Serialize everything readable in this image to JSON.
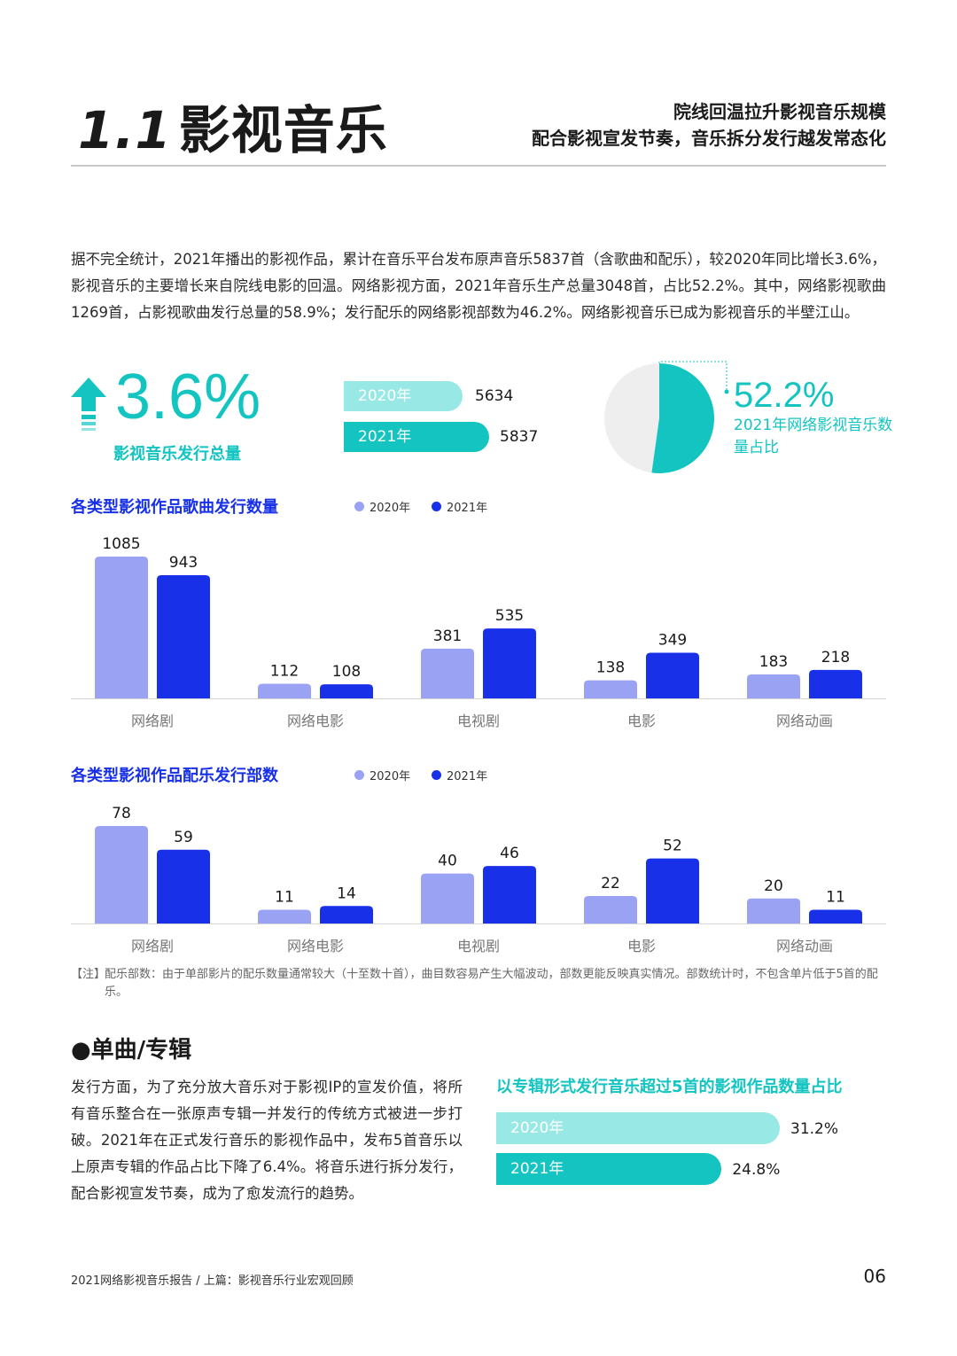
{
  "header": {
    "title_num": "1.1",
    "title_text": "影视音乐",
    "subtitle_line1": "院线回温拉升影视音乐规模",
    "subtitle_line2": "配合影视宣发节奏，音乐拆分发行越发常态化"
  },
  "intro": "据不完全统计，2021年播出的影视作品，累计在音乐平台发布原声音乐5837首（含歌曲和配乐），较2020年同比增长3.6%，影视音乐的主要增长来自院线电影的回温。网络影视方面，2021年音乐生产总量3048首，占比52.2%。其中，网络影视歌曲1269首，占影视歌曲发行总量的58.9%；发行配乐的网络影视部数为46.2%。网络影视音乐已成为影视音乐的半壁江山。",
  "kpi": {
    "growth_value": "3.6%",
    "growth_label": "影视音乐发行总量",
    "totals": [
      {
        "year": "2020年",
        "value": 5634,
        "label": "5634"
      },
      {
        "year": "2021年",
        "value": 5837,
        "label": "5837"
      }
    ],
    "share_value": "52.2%",
    "share_fraction": 0.522,
    "share_label": "2021年网络影视音乐数量占比"
  },
  "colors": {
    "teal": "#13c4c1",
    "teal_light": "#98e8e6",
    "blue": "#1730e8",
    "lavender": "#9aa2f4",
    "pie_rest": "#eeeeee"
  },
  "chart_data": [
    {
      "type": "bar",
      "title": "各类型影视作品歌曲发行数量",
      "categories": [
        "网络剧",
        "网络电影",
        "电视剧",
        "电影",
        "网络动画"
      ],
      "series": [
        {
          "name": "2020年",
          "values": [
            1085,
            112,
            381,
            138,
            183
          ]
        },
        {
          "name": "2021年",
          "values": [
            943,
            108,
            535,
            349,
            218
          ]
        }
      ],
      "legend": "top",
      "grid": false
    },
    {
      "type": "bar",
      "title": "各类型影视作品配乐发行部数",
      "categories": [
        "网络剧",
        "网络电影",
        "电视剧",
        "电影",
        "网络动画"
      ],
      "series": [
        {
          "name": "2020年",
          "values": [
            78,
            11,
            40,
            22,
            20
          ]
        },
        {
          "name": "2021年",
          "values": [
            59,
            14,
            46,
            52,
            11
          ]
        }
      ],
      "legend": "top",
      "grid": false
    },
    {
      "type": "bar",
      "orientation": "horizontal",
      "title": "以专辑形式发行音乐超过5首的影视作品数量占比",
      "categories": [
        "2020年",
        "2021年"
      ],
      "values": [
        31.2,
        24.8
      ],
      "value_labels": [
        "31.2%",
        "24.8%"
      ]
    }
  ],
  "note": {
    "tag": "【注】",
    "text": "配乐部数：由于单部影片的配乐数量通常较大（十至数十首），曲目数容易产生大幅波动，部数更能反映真实情况。部数统计时，不包含单片低于5首的配乐。"
  },
  "section": {
    "heading": "●单曲/专辑",
    "body": "发行方面，为了充分放大音乐对于影视IP的宣发价值，将所有音乐整合在一张原声专辑一并发行的传统方式被进一步打破。2021年在正式发行音乐的影视作品中，发布5首音乐以上原声专辑的作品占比下降了6.4%。将音乐进行拆分发行，配合影视宣发节奏，成为了愈发流行的趋势。"
  },
  "footer": {
    "text": "2021网络影视音乐报告 / 上篇：影视音乐行业宏观回顾",
    "page": "06"
  }
}
